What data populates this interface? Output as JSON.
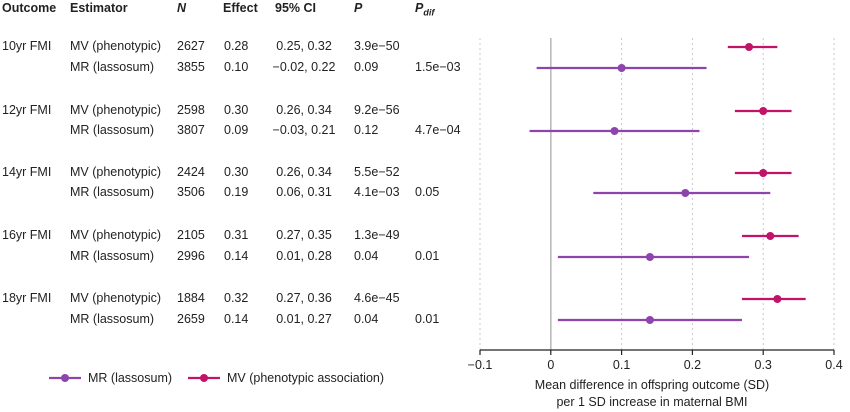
{
  "table": {
    "headers": {
      "outcome": "Outcome",
      "estimator": "Estimator",
      "n": "N",
      "effect": "Effect",
      "ci": "95% CI",
      "p": "P",
      "pdif_main": "P",
      "pdif_sub": "dif"
    },
    "groups": [
      {
        "outcome": "10yr FMI",
        "rows": [
          {
            "estimator": "MV (phenotypic)",
            "n": "2627",
            "effect": "0.28",
            "ci": "0.25, 0.32",
            "p": "3.9e−50",
            "pdif": ""
          },
          {
            "estimator": "MR (lassosum)",
            "n": "3855",
            "effect": "0.10",
            "ci": "−0.02, 0.22",
            "p": "0.09",
            "pdif": "1.5e−03"
          }
        ]
      },
      {
        "outcome": "12yr FMI",
        "rows": [
          {
            "estimator": "MV (phenotypic)",
            "n": "2598",
            "effect": "0.30",
            "ci": "0.26, 0.34",
            "p": "9.2e−56",
            "pdif": ""
          },
          {
            "estimator": "MR (lassosum)",
            "n": "3807",
            "effect": "0.09",
            "ci": "−0.03, 0.21",
            "p": "0.12",
            "pdif": "4.7e−04"
          }
        ]
      },
      {
        "outcome": "14yr FMI",
        "rows": [
          {
            "estimator": "MV (phenotypic)",
            "n": "2424",
            "effect": "0.30",
            "ci": "0.26, 0.34",
            "p": "5.5e−52",
            "pdif": ""
          },
          {
            "estimator": "MR (lassosum)",
            "n": "3506",
            "effect": "0.19",
            "ci": "0.06, 0.31",
            "p": "4.1e−03",
            "pdif": "0.05"
          }
        ]
      },
      {
        "outcome": "16yr FMI",
        "rows": [
          {
            "estimator": "MV (phenotypic)",
            "n": "2105",
            "effect": "0.31",
            "ci": "0.27, 0.35",
            "p": "1.3e−49",
            "pdif": ""
          },
          {
            "estimator": "MR (lassosum)",
            "n": "2996",
            "effect": "0.14",
            "ci": "0.01, 0.28",
            "p": "0.04",
            "pdif": "0.01"
          }
        ]
      },
      {
        "outcome": "18yr FMI",
        "rows": [
          {
            "estimator": "MV (phenotypic)",
            "n": "1884",
            "effect": "0.32",
            "ci": "0.27, 0.36",
            "p": "4.6e−45",
            "pdif": ""
          },
          {
            "estimator": "MR (lassosum)",
            "n": "2659",
            "effect": "0.14",
            "ci": "0.01, 0.27",
            "p": "0.04",
            "pdif": "0.01"
          }
        ]
      }
    ]
  },
  "legend": {
    "mr_label": "MR (lassosum)",
    "mv_label": "MV (phenotypic association)"
  },
  "colors": {
    "mr": "#8e44ad",
    "mv": "#c2136b",
    "zero_line": "#bbbbbb",
    "grid": "#c8c8c8",
    "axis": "#222222"
  },
  "chart_data": {
    "type": "scatter",
    "subtype": "forest plot",
    "xlabel_line1": "Mean difference in offspring outcome (SD)",
    "xlabel_line2": "per 1 SD increase in maternal BMI",
    "xlim": [
      -0.1,
      0.4
    ],
    "xticks": [
      "−0.1",
      "0",
      "0.1",
      "0.2",
      "0.3",
      "0.4"
    ],
    "xtick_values": [
      -0.1,
      0,
      0.1,
      0.2,
      0.3,
      0.4
    ],
    "grid_values": [
      0.1,
      0.2,
      0.3
    ],
    "reference_line": 0,
    "series": [
      {
        "name": "MV (phenotypic association)",
        "color": "#c2136b",
        "estimates": [
          0.28,
          0.3,
          0.3,
          0.31,
          0.32
        ],
        "lower": [
          0.25,
          0.26,
          0.26,
          0.27,
          0.27
        ],
        "upper": [
          0.32,
          0.34,
          0.34,
          0.35,
          0.36
        ]
      },
      {
        "name": "MR (lassosum)",
        "color": "#8e44ad",
        "estimates": [
          0.1,
          0.09,
          0.19,
          0.14,
          0.14
        ],
        "lower": [
          -0.02,
          -0.03,
          0.06,
          0.01,
          0.01
        ],
        "upper": [
          0.22,
          0.21,
          0.31,
          0.28,
          0.27
        ]
      }
    ],
    "outcomes": [
      "10yr FMI",
      "12yr FMI",
      "14yr FMI",
      "16yr FMI",
      "18yr FMI"
    ]
  }
}
